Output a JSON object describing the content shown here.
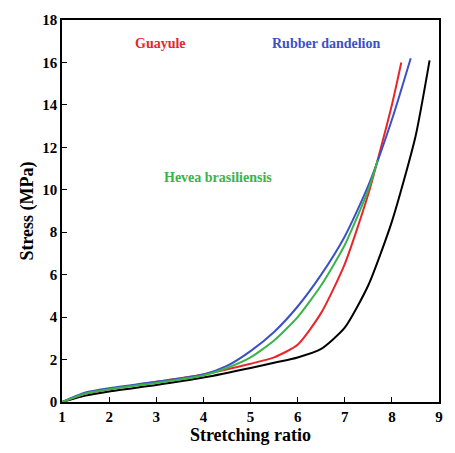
{
  "chart_data": {
    "type": "line",
    "x_label": "Stretching ratio",
    "y_label": "Stress (MPa)",
    "xlim": [
      1,
      9
    ],
    "xticks": [
      1,
      2,
      3,
      4,
      5,
      6,
      7,
      8,
      9
    ],
    "ylim": [
      0,
      18
    ],
    "yticks": [
      0,
      2,
      4,
      6,
      8,
      10,
      12,
      14,
      16,
      18
    ],
    "grid": false,
    "series": [
      {
        "color": "#000000",
        "x": [
          1,
          1.5,
          2,
          3,
          4,
          5,
          5.5,
          6,
          6.5,
          7,
          7.5,
          8,
          8.5,
          8.8
        ],
        "values": [
          0,
          0.3,
          0.5,
          0.8,
          1.15,
          1.6,
          1.85,
          2.1,
          2.5,
          3.5,
          5.5,
          8.5,
          12.5,
          16.1
        ]
      },
      {
        "name": "Guayule",
        "color": "#e8262a",
        "x": [
          1,
          1.5,
          2,
          3,
          4,
          5,
          5.5,
          6,
          6.5,
          7,
          7.5,
          8,
          8.2
        ],
        "values": [
          0,
          0.4,
          0.6,
          0.95,
          1.3,
          1.8,
          2.1,
          2.7,
          4.2,
          6.5,
          9.8,
          14,
          16
        ]
      },
      {
        "name": "Rubber dandelion",
        "color": "#3b50c7",
        "x": [
          1,
          1.5,
          2,
          3,
          4,
          4.5,
          5,
          5.5,
          6,
          6.5,
          7,
          7.5,
          8,
          8.4
        ],
        "values": [
          0,
          0.45,
          0.65,
          0.95,
          1.3,
          1.7,
          2.4,
          3.3,
          4.5,
          6.0,
          7.8,
          10.2,
          13.3,
          16.2
        ]
      },
      {
        "name": "Hevea brasiliensis",
        "color": "#38b44a",
        "x": [
          1,
          1.5,
          2,
          3,
          4,
          4.5,
          5,
          5.5,
          6,
          6.5,
          7,
          7.5,
          7.7
        ],
        "values": [
          0,
          0.4,
          0.6,
          0.9,
          1.25,
          1.6,
          2.1,
          2.9,
          4.0,
          5.5,
          7.4,
          10.0,
          11.4
        ]
      }
    ]
  }
}
